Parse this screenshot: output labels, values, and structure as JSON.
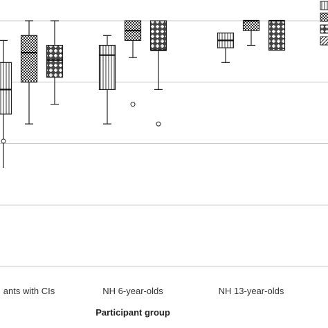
{
  "chart_data": {
    "type": "box",
    "title": "",
    "xlabel": "Participant group",
    "ylabel": "",
    "categories": [
      "ants with CIs",
      "NH 6-year-olds",
      "NH 13-year-olds"
    ],
    "ylim": [
      0,
      100
    ],
    "y_gridlines": [
      0,
      25,
      50,
      75,
      100
    ],
    "grid": true,
    "legend_position": "top-right (partially cut off)",
    "series": [
      {
        "pattern": "vertical-lines",
        "boxes": [
          {
            "category": "ants with CIs",
            "whisker_low": null,
            "q1": 62,
            "median": 72,
            "q3": 83,
            "whisker_high": 92,
            "outliers": [
              51
            ]
          },
          {
            "category": "NH 6-year-olds",
            "whisker_low": 58,
            "q1": 72,
            "median": 86,
            "q3": 90,
            "whisker_high": 94,
            "outliers": []
          },
          {
            "category": "NH 13-year-olds",
            "whisker_low": 83,
            "q1": 89,
            "median": 92,
            "q3": 95,
            "whisker_high": 95,
            "outliers": []
          }
        ]
      },
      {
        "pattern": "checkered",
        "boxes": [
          {
            "category": "ants with CIs",
            "whisker_low": 58,
            "q1": 75,
            "median": 87,
            "q3": 94,
            "whisker_high": 100,
            "outliers": []
          },
          {
            "category": "NH 6-year-olds",
            "whisker_low": 85,
            "q1": 92,
            "median": 96,
            "q3": 100,
            "whisker_high": 100,
            "outliers": [
              66
            ]
          },
          {
            "category": "NH 13-year-olds",
            "whisker_low": 90,
            "q1": 96,
            "median": 100,
            "q3": 100,
            "whisker_high": 100,
            "outliers": []
          }
        ]
      },
      {
        "pattern": "plus-dots",
        "boxes": [
          {
            "category": "ants with CIs",
            "whisker_low": 66,
            "q1": 77,
            "median": 84,
            "q3": 90,
            "whisker_high": 100,
            "outliers": []
          },
          {
            "category": "NH 6-year-olds",
            "whisker_low": 72,
            "q1": 88,
            "median": 88,
            "q3": 100,
            "whisker_high": 100,
            "outliers": [
              58
            ]
          },
          {
            "category": "NH 13-year-olds",
            "whisker_low": 88,
            "q1": 88,
            "median": 100,
            "q3": 100,
            "whisker_high": 100,
            "outliers": []
          }
        ]
      }
    ],
    "legend_patterns": [
      "vertical-lines",
      "checkered",
      "plus-dots",
      "diagonal-lines"
    ]
  }
}
